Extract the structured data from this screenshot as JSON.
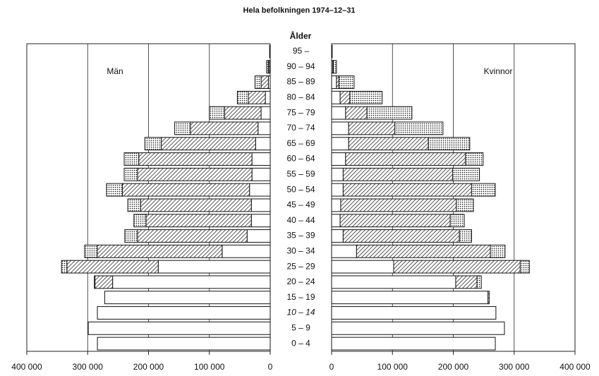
{
  "chart_data": {
    "type": "pyramid",
    "title": "Hela befolkningen 1974–12–31",
    "axis_label": "Ålder",
    "categories": [
      "0 – 4",
      "5 – 9",
      "10 – 14",
      "15 – 19",
      "20 – 24",
      "25 – 29",
      "30 – 34",
      "35 – 39",
      "40 – 44",
      "45 – 49",
      "50 – 54",
      "55 – 59",
      "60 – 64",
      "65 – 69",
      "70 – 74",
      "75 – 79",
      "80 – 84",
      "85 – 89",
      "90 – 94",
      "95 –"
    ],
    "left": {
      "name": "Män",
      "segments": [
        {
          "pattern": "none",
          "values": [
            284000,
            299000,
            284000,
            272000,
            259000,
            184000,
            79000,
            38000,
            31000,
            31000,
            34000,
            30000,
            30000,
            24000,
            20000,
            15000,
            8000,
            3000,
            1000,
            0
          ]
        },
        {
          "pattern": "hatch",
          "values": [
            0,
            0,
            0,
            0,
            29000,
            150000,
            205000,
            180000,
            173000,
            182000,
            209000,
            188000,
            186000,
            155000,
            111000,
            60000,
            28000,
            12000,
            2000,
            0
          ]
        },
        {
          "pattern": "dots",
          "values": [
            0,
            0,
            0,
            0,
            1000,
            9000,
            21000,
            21000,
            20000,
            21000,
            26000,
            22000,
            24000,
            27000,
            26000,
            25000,
            18000,
            10000,
            3000,
            1000
          ]
        }
      ]
    },
    "right": {
      "name": "Kvinnor",
      "segments": [
        {
          "pattern": "none",
          "values": [
            269000,
            284000,
            270000,
            257000,
            204000,
            102000,
            41000,
            19000,
            14000,
            15000,
            19000,
            19000,
            23000,
            28000,
            28000,
            23000,
            14000,
            8000,
            2000,
            0
          ]
        },
        {
          "pattern": "hatch",
          "values": [
            0,
            0,
            0,
            2000,
            35000,
            208000,
            220000,
            191000,
            181000,
            190000,
            211000,
            180000,
            197000,
            131000,
            76000,
            35000,
            16000,
            4000,
            1000,
            0
          ]
        },
        {
          "pattern": "dots",
          "values": [
            0,
            0,
            0,
            0,
            7000,
            15000,
            24000,
            20000,
            23000,
            28000,
            39000,
            44000,
            29000,
            68000,
            79000,
            74000,
            53000,
            25000,
            5000,
            1000
          ]
        }
      ]
    },
    "xlim": [
      0,
      400000
    ],
    "xticks": [
      0,
      {
        "value": 100000,
        "label": "100 000"
      },
      {
        "value": 200000,
        "label": "200 000"
      },
      {
        "value": 300000,
        "label": "300 000"
      },
      {
        "value": 400000,
        "label": "400 000"
      }
    ],
    "grid": true
  }
}
